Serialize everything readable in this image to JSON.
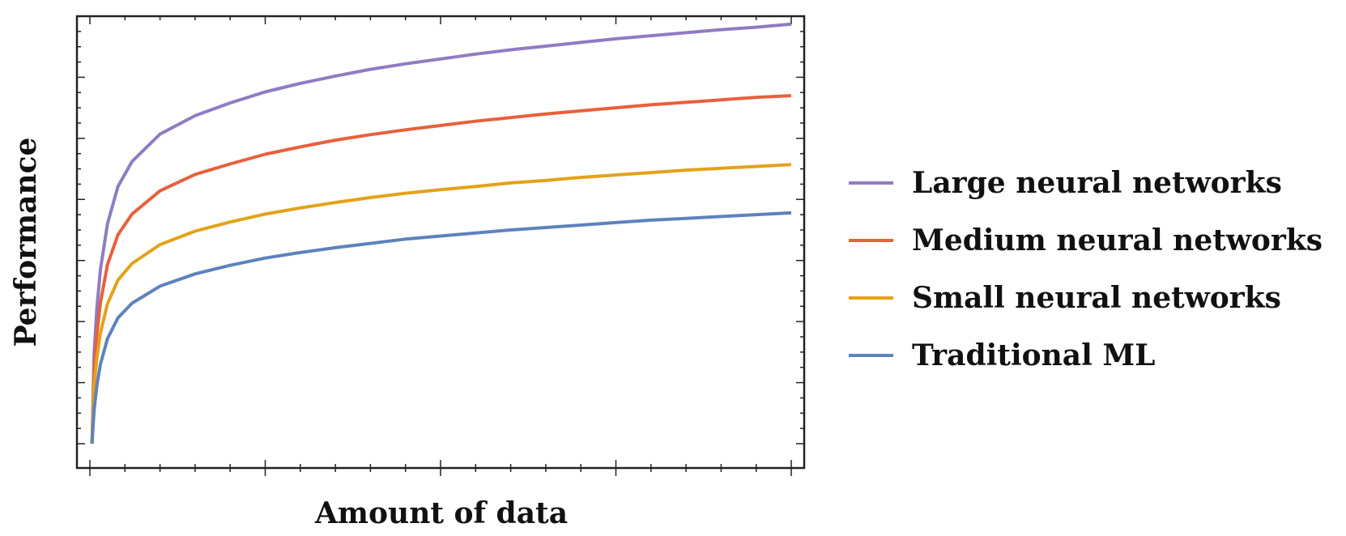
{
  "chart_data": {
    "type": "line",
    "xlabel": "Amount of data",
    "ylabel": "Performance",
    "x_tick_labels": false,
    "y_tick_labels": false,
    "grid": false,
    "legend_position": "right",
    "x": [
      0.03,
      0.06,
      0.1,
      0.15,
      0.25,
      0.4,
      0.6,
      1,
      1.5,
      2,
      2.5,
      3,
      3.5,
      4,
      4.5,
      5,
      5.5,
      6,
      6.5,
      7,
      7.5,
      8,
      8.5,
      9,
      9.5,
      10
    ],
    "xlim": [
      0,
      10
    ],
    "ylim": [
      0,
      7
    ],
    "series": [
      {
        "name": "Large neural networks",
        "color": "#8F7CC3",
        "values": [
          0.0,
          1.47,
          2.23,
          2.85,
          3.6,
          4.21,
          4.62,
          5.07,
          5.37,
          5.58,
          5.76,
          5.9,
          6.02,
          6.13,
          6.22,
          6.3,
          6.38,
          6.45,
          6.51,
          6.57,
          6.63,
          6.68,
          6.73,
          6.78,
          6.82,
          6.87
        ]
      },
      {
        "name": "Medium neural networks",
        "color": "#E8603C",
        "values": [
          0.0,
          1.2,
          1.81,
          2.31,
          2.93,
          3.42,
          3.76,
          4.14,
          4.41,
          4.58,
          4.74,
          4.86,
          4.97,
          5.06,
          5.14,
          5.21,
          5.28,
          5.34,
          5.4,
          5.45,
          5.5,
          5.55,
          5.59,
          5.63,
          5.67,
          5.7
        ]
      },
      {
        "name": "Small neural networks",
        "color": "#E3A21A",
        "values": [
          0.0,
          0.95,
          1.42,
          1.81,
          2.29,
          2.68,
          2.95,
          3.26,
          3.48,
          3.63,
          3.76,
          3.86,
          3.95,
          4.03,
          4.1,
          4.16,
          4.21,
          4.27,
          4.31,
          4.36,
          4.4,
          4.44,
          4.48,
          4.51,
          4.54,
          4.57
        ]
      },
      {
        "name": "Traditional ML",
        "color": "#5E82BE",
        "values": [
          0.0,
          0.55,
          0.96,
          1.3,
          1.72,
          2.06,
          2.3,
          2.58,
          2.78,
          2.92,
          3.04,
          3.13,
          3.21,
          3.28,
          3.35,
          3.4,
          3.45,
          3.5,
          3.54,
          3.58,
          3.62,
          3.66,
          3.69,
          3.72,
          3.75,
          3.78
        ]
      }
    ]
  }
}
